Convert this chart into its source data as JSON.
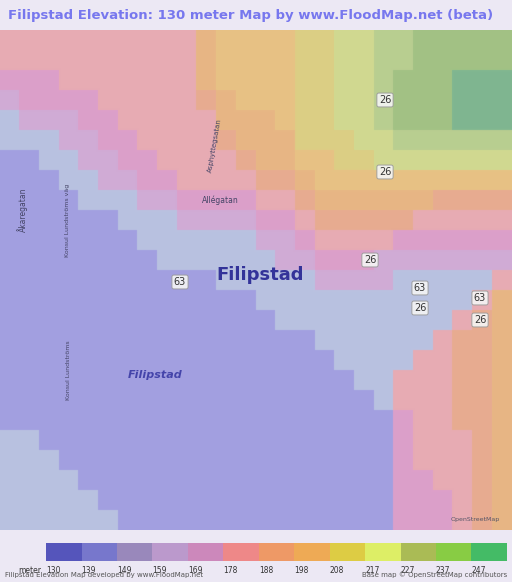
{
  "title": "Filipstad Elevation: 130 meter Map by www.FloodMap.net (beta)",
  "title_color": "#7777ee",
  "title_bg": "#ece8f4",
  "fig_bg": "#ece8f4",
  "legend_labels": [
    "130",
    "139",
    "149",
    "159",
    "169",
    "178",
    "188",
    "198",
    "208",
    "217",
    "227",
    "237",
    "247"
  ],
  "colorbar_colors": [
    "#5555bb",
    "#7777cc",
    "#9988bb",
    "#bb99cc",
    "#cc88bb",
    "#ee8888",
    "#ee9966",
    "#eeaa55",
    "#ddcc44",
    "#ddee66",
    "#aabb55",
    "#88cc44",
    "#44bb66"
  ],
  "footer_left": "Filipstad Elevation Map developed by www.FloodMap.net",
  "footer_right": "Base map © OpenStreetMap contributors",
  "meter_label": "meter",
  "map_bg": "#d4c8e8",
  "elevation_grid_cols": 26,
  "elevation_grid_rows": 25,
  "elevation_data": [
    [
      5,
      5,
      5,
      5,
      5,
      5,
      5,
      5,
      5,
      5,
      7,
      8,
      8,
      8,
      8,
      9,
      9,
      10,
      10,
      11,
      11,
      12,
      12,
      12,
      12,
      12
    ],
    [
      5,
      5,
      5,
      5,
      5,
      5,
      5,
      5,
      5,
      5,
      7,
      8,
      8,
      8,
      8,
      9,
      9,
      10,
      10,
      11,
      11,
      12,
      12,
      12,
      12,
      12
    ],
    [
      4,
      4,
      4,
      5,
      5,
      5,
      5,
      5,
      5,
      5,
      7,
      8,
      8,
      8,
      8,
      9,
      9,
      10,
      10,
      11,
      12,
      12,
      12,
      13,
      13,
      13
    ],
    [
      3,
      4,
      4,
      4,
      4,
      5,
      5,
      5,
      5,
      5,
      6,
      7,
      8,
      8,
      8,
      9,
      9,
      10,
      10,
      11,
      12,
      12,
      12,
      13,
      13,
      13
    ],
    [
      2,
      3,
      3,
      3,
      4,
      4,
      5,
      5,
      5,
      5,
      5,
      7,
      7,
      7,
      8,
      9,
      9,
      10,
      10,
      11,
      12,
      12,
      12,
      13,
      13,
      13
    ],
    [
      2,
      2,
      2,
      3,
      3,
      4,
      4,
      5,
      5,
      5,
      5,
      6,
      7,
      7,
      7,
      9,
      9,
      9,
      10,
      10,
      11,
      11,
      11,
      11,
      11,
      11
    ],
    [
      1,
      1,
      2,
      2,
      3,
      3,
      4,
      4,
      5,
      5,
      5,
      5,
      6,
      7,
      7,
      8,
      8,
      9,
      9,
      10,
      10,
      10,
      10,
      10,
      10,
      10
    ],
    [
      1,
      1,
      1,
      2,
      2,
      3,
      3,
      4,
      4,
      5,
      5,
      5,
      5,
      6,
      6,
      7,
      8,
      8,
      8,
      8,
      8,
      8,
      8,
      8,
      8,
      8
    ],
    [
      1,
      1,
      1,
      1,
      2,
      2,
      2,
      3,
      3,
      4,
      4,
      4,
      4,
      5,
      5,
      6,
      7,
      7,
      7,
      7,
      7,
      7,
      6,
      6,
      6,
      6
    ],
    [
      1,
      1,
      1,
      1,
      1,
      1,
      2,
      2,
      2,
      3,
      3,
      3,
      3,
      4,
      4,
      5,
      6,
      6,
      6,
      6,
      6,
      5,
      5,
      5,
      5,
      5
    ],
    [
      1,
      1,
      1,
      1,
      1,
      1,
      1,
      2,
      2,
      2,
      2,
      2,
      2,
      3,
      3,
      4,
      5,
      5,
      5,
      5,
      4,
      4,
      4,
      4,
      4,
      4
    ],
    [
      1,
      1,
      1,
      1,
      1,
      1,
      1,
      1,
      2,
      2,
      2,
      2,
      2,
      2,
      3,
      3,
      4,
      4,
      4,
      3,
      3,
      3,
      3,
      3,
      3,
      3
    ],
    [
      1,
      1,
      1,
      1,
      1,
      1,
      1,
      1,
      1,
      1,
      1,
      2,
      2,
      2,
      2,
      2,
      3,
      3,
      3,
      3,
      2,
      2,
      2,
      2,
      2,
      5
    ],
    [
      1,
      1,
      1,
      1,
      1,
      1,
      1,
      1,
      1,
      1,
      1,
      1,
      1,
      2,
      2,
      2,
      2,
      2,
      2,
      2,
      2,
      2,
      2,
      2,
      5,
      7
    ],
    [
      1,
      1,
      1,
      1,
      1,
      1,
      1,
      1,
      1,
      1,
      1,
      1,
      1,
      1,
      2,
      2,
      2,
      2,
      2,
      2,
      2,
      2,
      2,
      5,
      6,
      7
    ],
    [
      1,
      1,
      1,
      1,
      1,
      1,
      1,
      1,
      1,
      1,
      1,
      1,
      1,
      1,
      1,
      1,
      2,
      2,
      2,
      2,
      2,
      2,
      5,
      6,
      6,
      7
    ],
    [
      1,
      1,
      1,
      1,
      1,
      1,
      1,
      1,
      1,
      1,
      1,
      1,
      1,
      1,
      1,
      1,
      1,
      2,
      2,
      2,
      2,
      5,
      5,
      6,
      6,
      7
    ],
    [
      1,
      1,
      1,
      1,
      1,
      1,
      1,
      1,
      1,
      1,
      1,
      1,
      1,
      1,
      1,
      1,
      1,
      1,
      2,
      2,
      5,
      5,
      5,
      6,
      6,
      7
    ],
    [
      1,
      1,
      1,
      1,
      1,
      1,
      1,
      1,
      1,
      1,
      1,
      1,
      1,
      1,
      1,
      1,
      1,
      1,
      1,
      2,
      5,
      5,
      5,
      6,
      6,
      7
    ],
    [
      1,
      1,
      1,
      1,
      1,
      1,
      1,
      1,
      1,
      1,
      1,
      1,
      1,
      1,
      1,
      1,
      1,
      1,
      1,
      1,
      4,
      5,
      5,
      6,
      6,
      7
    ],
    [
      2,
      2,
      1,
      1,
      1,
      1,
      1,
      1,
      1,
      1,
      1,
      1,
      1,
      1,
      1,
      1,
      1,
      1,
      1,
      1,
      4,
      5,
      5,
      5,
      6,
      7
    ],
    [
      2,
      2,
      2,
      1,
      1,
      1,
      1,
      1,
      1,
      1,
      1,
      1,
      1,
      1,
      1,
      1,
      1,
      1,
      1,
      1,
      4,
      5,
      5,
      5,
      6,
      7
    ],
    [
      2,
      2,
      2,
      2,
      1,
      1,
      1,
      1,
      1,
      1,
      1,
      1,
      1,
      1,
      1,
      1,
      1,
      1,
      1,
      1,
      4,
      4,
      5,
      5,
      6,
      7
    ],
    [
      2,
      2,
      2,
      2,
      2,
      1,
      1,
      1,
      1,
      1,
      1,
      1,
      1,
      1,
      1,
      1,
      1,
      1,
      1,
      1,
      4,
      4,
      4,
      5,
      6,
      7
    ],
    [
      2,
      2,
      2,
      2,
      2,
      2,
      1,
      1,
      1,
      1,
      1,
      1,
      1,
      1,
      1,
      1,
      1,
      1,
      1,
      1,
      4,
      4,
      4,
      5,
      6,
      7
    ]
  ],
  "elevation_colors": {
    "1": "#8888dd",
    "2": "#aabbdd",
    "3": "#cc99cc",
    "4": "#dd88bb",
    "5": "#ee9999",
    "6": "#ee9966",
    "7": "#eeaa55",
    "8": "#eebb55",
    "9": "#ddcc55",
    "10": "#ccdd66",
    "11": "#aacc66",
    "12": "#88bb55",
    "13": "#55aa66"
  }
}
